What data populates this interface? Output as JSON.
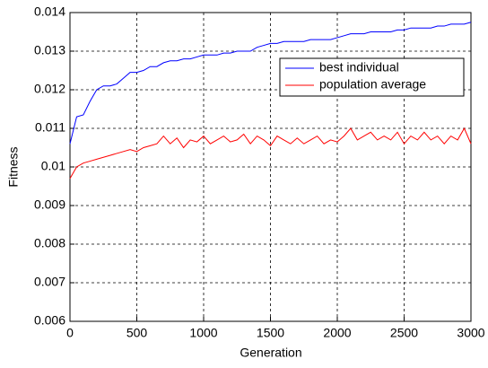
{
  "chart_data": {
    "type": "line",
    "x": [
      0,
      50,
      100,
      150,
      200,
      250,
      300,
      350,
      400,
      450,
      500,
      550,
      600,
      650,
      700,
      750,
      800,
      850,
      900,
      950,
      1000,
      1050,
      1100,
      1150,
      1200,
      1250,
      1300,
      1350,
      1400,
      1450,
      1500,
      1550,
      1600,
      1650,
      1700,
      1750,
      1800,
      1850,
      1900,
      1950,
      2000,
      2050,
      2100,
      2150,
      2200,
      2250,
      2300,
      2350,
      2400,
      2450,
      2500,
      2550,
      2600,
      2650,
      2700,
      2750,
      2800,
      2850,
      2900,
      2950,
      3000
    ],
    "series": [
      {
        "name": "best individual",
        "color": "#0000ff",
        "values": [
          0.0106,
          0.0113,
          0.01135,
          0.0117,
          0.012,
          0.0121,
          0.0121,
          0.01215,
          0.0123,
          0.01245,
          0.01245,
          0.0125,
          0.0126,
          0.0126,
          0.0127,
          0.01275,
          0.01275,
          0.0128,
          0.0128,
          0.01285,
          0.0129,
          0.0129,
          0.0129,
          0.01295,
          0.01295,
          0.013,
          0.013,
          0.013,
          0.0131,
          0.01315,
          0.0132,
          0.0132,
          0.01325,
          0.01325,
          0.01325,
          0.01325,
          0.0133,
          0.0133,
          0.0133,
          0.0133,
          0.01335,
          0.0134,
          0.01345,
          0.01345,
          0.01345,
          0.0135,
          0.0135,
          0.0135,
          0.0135,
          0.01355,
          0.01355,
          0.0136,
          0.0136,
          0.0136,
          0.0136,
          0.01365,
          0.01365,
          0.0137,
          0.0137,
          0.0137,
          0.01375
        ]
      },
      {
        "name": "population average",
        "color": "#ff0000",
        "values": [
          0.0097,
          0.01,
          0.0101,
          0.01015,
          0.0102,
          0.01025,
          0.0103,
          0.01035,
          0.0104,
          0.01045,
          0.0104,
          0.0105,
          0.01055,
          0.0106,
          0.0108,
          0.0106,
          0.01075,
          0.0105,
          0.0107,
          0.01065,
          0.0108,
          0.0106,
          0.0107,
          0.0108,
          0.01065,
          0.0107,
          0.01085,
          0.0106,
          0.0108,
          0.0107,
          0.01055,
          0.0108,
          0.0107,
          0.0106,
          0.01075,
          0.0106,
          0.0107,
          0.0108,
          0.0106,
          0.0107,
          0.01065,
          0.0108,
          0.011,
          0.0107,
          0.0108,
          0.0109,
          0.0107,
          0.0108,
          0.0107,
          0.0109,
          0.0106,
          0.0108,
          0.0107,
          0.0109,
          0.0107,
          0.0108,
          0.0106,
          0.0108,
          0.0107,
          0.011,
          0.0106
        ]
      }
    ],
    "xlabel": "Generation",
    "ylabel": "Fitness",
    "xlim": [
      0,
      3000
    ],
    "xticks": [
      0,
      500,
      1000,
      1500,
      2000,
      2500,
      3000
    ],
    "ylim": [
      0.006,
      0.014
    ],
    "yticks": [
      0.006,
      0.007,
      0.008,
      0.009,
      0.01,
      0.011,
      0.012,
      0.013,
      0.014
    ],
    "grid": true,
    "legend": "upper right"
  }
}
